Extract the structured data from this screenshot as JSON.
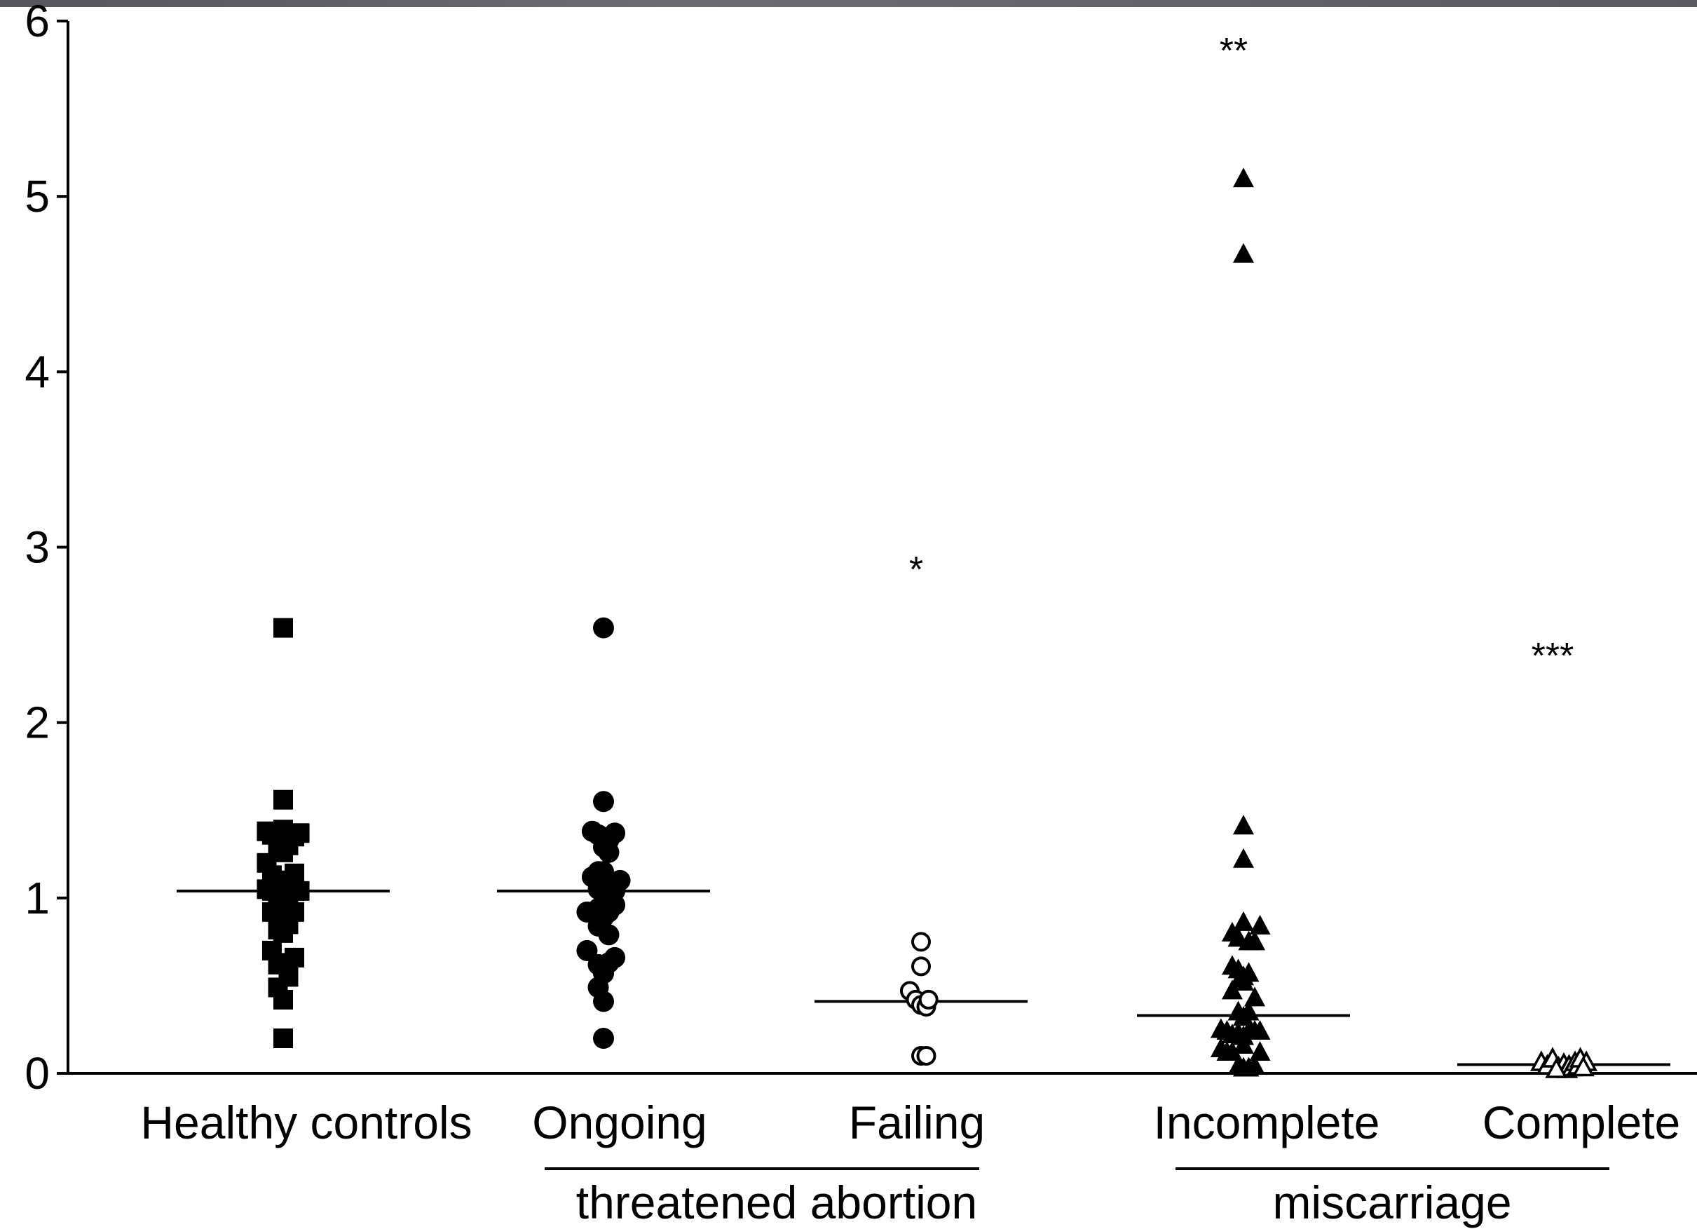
{
  "chart_data": {
    "type": "scatter",
    "title": "",
    "xlabel": "",
    "ylabel": "",
    "ylim": [
      0,
      6
    ],
    "yticks": [
      0,
      1,
      2,
      3,
      4,
      5,
      6
    ],
    "categories": [
      "Healthy controls",
      "Ongoing",
      "Failing",
      "Incomplete",
      "Complete"
    ],
    "groups": [
      {
        "label": "threatened abortion",
        "categories": [
          "Ongoing",
          "Failing"
        ]
      },
      {
        "label": "miscarriage",
        "categories": [
          "Incomplete",
          "Complete"
        ]
      }
    ],
    "series": [
      {
        "category": "Healthy controls",
        "marker": "filled-square",
        "median": 1.04,
        "significance": "",
        "points": [
          {
            "dx": 0,
            "y": 2.54
          },
          {
            "dx": 0,
            "y": 1.56
          },
          {
            "dx": -0.22,
            "y": 1.38
          },
          {
            "dx": -0.15,
            "y": 1.36
          },
          {
            "dx": -0.07,
            "y": 1.3
          },
          {
            "dx": 0,
            "y": 1.39
          },
          {
            "dx": 0.07,
            "y": 1.3
          },
          {
            "dx": 0.15,
            "y": 1.35
          },
          {
            "dx": 0.22,
            "y": 1.37
          },
          {
            "dx": -0.22,
            "y": 1.2
          },
          {
            "dx": -0.15,
            "y": 1.13
          },
          {
            "dx": -0.07,
            "y": 1.1
          },
          {
            "dx": 0,
            "y": 1.26
          },
          {
            "dx": 0.07,
            "y": 1.1
          },
          {
            "dx": 0.15,
            "y": 1.14
          },
          {
            "dx": -0.22,
            "y": 1.05
          },
          {
            "dx": -0.15,
            "y": 1.04
          },
          {
            "dx": -0.07,
            "y": 1.03
          },
          {
            "dx": 0,
            "y": 1.07
          },
          {
            "dx": 0.07,
            "y": 1.03
          },
          {
            "dx": 0.15,
            "y": 1.04
          },
          {
            "dx": 0.22,
            "y": 1.04
          },
          {
            "dx": -0.15,
            "y": 0.92
          },
          {
            "dx": -0.07,
            "y": 0.94
          },
          {
            "dx": 0,
            "y": 0.95
          },
          {
            "dx": 0.07,
            "y": 0.91
          },
          {
            "dx": 0.15,
            "y": 0.92
          },
          {
            "dx": -0.07,
            "y": 0.82
          },
          {
            "dx": 0,
            "y": 0.8
          },
          {
            "dx": 0.07,
            "y": 0.85
          },
          {
            "dx": -0.15,
            "y": 0.7
          },
          {
            "dx": -0.07,
            "y": 0.62
          },
          {
            "dx": 0.07,
            "y": 0.63
          },
          {
            "dx": 0.15,
            "y": 0.66
          },
          {
            "dx": -0.07,
            "y": 0.49
          },
          {
            "dx": 0,
            "y": 0.42
          },
          {
            "dx": 0.07,
            "y": 0.55
          },
          {
            "dx": 0,
            "y": 0.2
          }
        ]
      },
      {
        "category": "Ongoing",
        "marker": "filled-circle",
        "median": 1.04,
        "significance": "",
        "points": [
          {
            "dx": 0,
            "y": 2.54
          },
          {
            "dx": 0,
            "y": 1.55
          },
          {
            "dx": -0.15,
            "y": 1.38
          },
          {
            "dx": -0.07,
            "y": 1.36
          },
          {
            "dx": 0,
            "y": 1.29
          },
          {
            "dx": 0.07,
            "y": 1.33
          },
          {
            "dx": 0.15,
            "y": 1.37
          },
          {
            "dx": 0.07,
            "y": 1.26
          },
          {
            "dx": -0.15,
            "y": 1.12
          },
          {
            "dx": -0.07,
            "y": 1.15
          },
          {
            "dx": 0,
            "y": 1.15
          },
          {
            "dx": 0.07,
            "y": 1.1
          },
          {
            "dx": 0.22,
            "y": 1.1
          },
          {
            "dx": -0.07,
            "y": 1.05
          },
          {
            "dx": 0,
            "y": 1.04
          },
          {
            "dx": 0.07,
            "y": 1.03
          },
          {
            "dx": 0.15,
            "y": 1.04
          },
          {
            "dx": -0.22,
            "y": 0.92
          },
          {
            "dx": -0.07,
            "y": 0.94
          },
          {
            "dx": 0,
            "y": 0.89
          },
          {
            "dx": 0.07,
            "y": 0.92
          },
          {
            "dx": 0.15,
            "y": 0.96
          },
          {
            "dx": -0.07,
            "y": 0.84
          },
          {
            "dx": 0.07,
            "y": 0.79
          },
          {
            "dx": -0.22,
            "y": 0.7
          },
          {
            "dx": -0.07,
            "y": 0.62
          },
          {
            "dx": 0,
            "y": 0.57
          },
          {
            "dx": 0.07,
            "y": 0.63
          },
          {
            "dx": 0.15,
            "y": 0.66
          },
          {
            "dx": -0.07,
            "y": 0.49
          },
          {
            "dx": 0,
            "y": 0.41
          },
          {
            "dx": 0,
            "y": 0.2
          }
        ]
      },
      {
        "category": "Failing",
        "marker": "open-circle",
        "median": 0.41,
        "significance": "*",
        "points": [
          {
            "dx": 0,
            "y": 0.75
          },
          {
            "dx": 0,
            "y": 0.61
          },
          {
            "dx": -0.15,
            "y": 0.47
          },
          {
            "dx": -0.07,
            "y": 0.42
          },
          {
            "dx": 0,
            "y": 0.39
          },
          {
            "dx": 0.07,
            "y": 0.38
          },
          {
            "dx": 0.1,
            "y": 0.42
          },
          {
            "dx": 0,
            "y": 0.1
          },
          {
            "dx": 0.07,
            "y": 0.1
          }
        ]
      },
      {
        "category": "Incomplete",
        "marker": "filled-triangle",
        "median": 0.33,
        "significance": "**",
        "points": [
          {
            "dx": 0,
            "y": 5.1
          },
          {
            "dx": 0,
            "y": 4.67
          },
          {
            "dx": 0,
            "y": 1.41
          },
          {
            "dx": 0,
            "y": 1.22
          },
          {
            "dx": 0,
            "y": 0.86
          },
          {
            "dx": 0.22,
            "y": 0.84
          },
          {
            "dx": -0.15,
            "y": 0.8
          },
          {
            "dx": -0.07,
            "y": 0.77
          },
          {
            "dx": 0.07,
            "y": 0.75
          },
          {
            "dx": 0.15,
            "y": 0.75
          },
          {
            "dx": -0.15,
            "y": 0.61
          },
          {
            "dx": -0.07,
            "y": 0.59
          },
          {
            "dx": 0,
            "y": 0.55
          },
          {
            "dx": 0.07,
            "y": 0.57
          },
          {
            "dx": -0.15,
            "y": 0.47
          },
          {
            "dx": -0.07,
            "y": 0.52
          },
          {
            "dx": 0,
            "y": 0.52
          },
          {
            "dx": 0.15,
            "y": 0.43
          },
          {
            "dx": -0.07,
            "y": 0.35
          },
          {
            "dx": 0,
            "y": 0.32
          },
          {
            "dx": 0.07,
            "y": 0.35
          },
          {
            "dx": -0.3,
            "y": 0.25
          },
          {
            "dx": -0.22,
            "y": 0.24
          },
          {
            "dx": -0.15,
            "y": 0.22
          },
          {
            "dx": -0.07,
            "y": 0.23
          },
          {
            "dx": 0,
            "y": 0.21
          },
          {
            "dx": 0.07,
            "y": 0.24
          },
          {
            "dx": 0.15,
            "y": 0.24
          },
          {
            "dx": 0.22,
            "y": 0.24
          },
          {
            "dx": -0.3,
            "y": 0.14
          },
          {
            "dx": -0.22,
            "y": 0.12
          },
          {
            "dx": -0.15,
            "y": 0.12
          },
          {
            "dx": 0,
            "y": 0.16
          },
          {
            "dx": 0.22,
            "y": 0.12
          },
          {
            "dx": -0.07,
            "y": 0.04
          },
          {
            "dx": 0,
            "y": 0.03
          },
          {
            "dx": 0.07,
            "y": 0.03
          },
          {
            "dx": 0.15,
            "y": 0.04
          }
        ]
      },
      {
        "category": "Complete",
        "marker": "open-triangle",
        "median": 0.05,
        "significance": "***",
        "points": [
          {
            "dx": -0.3,
            "y": 0.06
          },
          {
            "dx": -0.22,
            "y": 0.04
          },
          {
            "dx": -0.15,
            "y": 0.08
          },
          {
            "dx": -0.07,
            "y": 0.03
          },
          {
            "dx": 0,
            "y": 0.05
          },
          {
            "dx": 0.04,
            "y": 0.02
          },
          {
            "dx": 0.07,
            "y": 0.04
          },
          {
            "dx": 0.11,
            "y": 0.03
          },
          {
            "dx": 0.15,
            "y": 0.06
          },
          {
            "dx": 0.19,
            "y": 0.04
          },
          {
            "dx": 0.22,
            "y": 0.08
          },
          {
            "dx": 0.3,
            "y": 0.06
          },
          {
            "dx": -0.1,
            "y": 0.02
          },
          {
            "dx": 0.26,
            "y": 0.03
          }
        ]
      }
    ]
  }
}
